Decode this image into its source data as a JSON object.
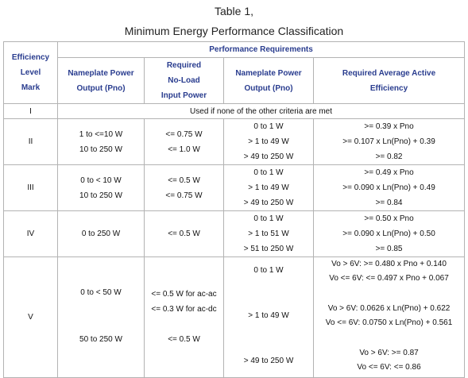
{
  "title": {
    "line1": "Table 1,",
    "line2": "Minimum Energy Performance Classification"
  },
  "headers": {
    "efficiency_mark": [
      "Efficiency",
      "Level",
      "Mark"
    ],
    "performance_requirements": "Performance Requirements",
    "nameplate_power_output": [
      "Nameplate Power",
      "Output (Pno)"
    ],
    "required_no_load_input_power": [
      "Required",
      "No-Load",
      "Input Power"
    ],
    "nameplate_power_output_2": [
      "Nameplate Power",
      "Output (Pno)"
    ],
    "required_average_active_efficiency": [
      "Required Average Active",
      "Efficiency"
    ]
  },
  "rows": {
    "I": {
      "mark": "I",
      "note": "Used if none of the other criteria are met"
    },
    "II": {
      "mark": "II",
      "output": [
        "1 to <=10 W",
        "10 to 250 W"
      ],
      "noload": [
        "<= 0.75 W",
        "<= 1.0 W"
      ],
      "output2": [
        "0 to 1 W",
        "> 1 to 49 W",
        "> 49 to 250 W"
      ],
      "efficiency": [
        ">= 0.39 x Pno",
        ">= 0.107 x Ln(Pno) + 0.39",
        ">= 0.82"
      ]
    },
    "III": {
      "mark": "III",
      "output": [
        "0 to < 10 W",
        "10 to 250 W"
      ],
      "noload": [
        "<= 0.5 W",
        "<= 0.75 W"
      ],
      "output2": [
        "0 to 1 W",
        "> 1 to 49 W",
        "> 49 to 250 W"
      ],
      "efficiency": [
        ">= 0.49 x Pno",
        ">= 0.090 x Ln(Pno) + 0.49",
        ">= 0.84"
      ]
    },
    "IV": {
      "mark": "IV",
      "output": [
        "0 to 250 W"
      ],
      "noload": [
        "<= 0.5 W"
      ],
      "output2": [
        "0 to 1 W",
        "> 1 to 51 W",
        "> 51 to 250 W"
      ],
      "efficiency": [
        ">= 0.50 x Pno",
        ">= 0.090 x Ln(Pno) + 0.50",
        ">= 0.85"
      ]
    },
    "V": {
      "mark": "V",
      "output": [
        "0 to < 50 W",
        "50 to 250 W"
      ],
      "noload": [
        "<= 0.5 W for ac-ac",
        "<= 0.3 W for ac-dc",
        "<= 0.5 W"
      ],
      "output2": [
        "0 to 1 W",
        "> 1 to 49 W",
        "> 49 to 250 W"
      ],
      "efficiency": [
        "Vo > 6V: >= 0.480 x Pno + 0.140",
        "Vo <= 6V: <= 0.497 x Pno + 0.067",
        "Vo > 6V: 0.0626 x Ln(Pno) + 0.622",
        "Vo <= 6V: 0.0750 x Ln(Pno) + 0.561",
        "Vo > 6V: >= 0.87",
        "Vo <= 6V: <= 0.86"
      ]
    }
  },
  "colors": {
    "header_text": "#2a3d8f",
    "border": "#b3b3b3"
  }
}
